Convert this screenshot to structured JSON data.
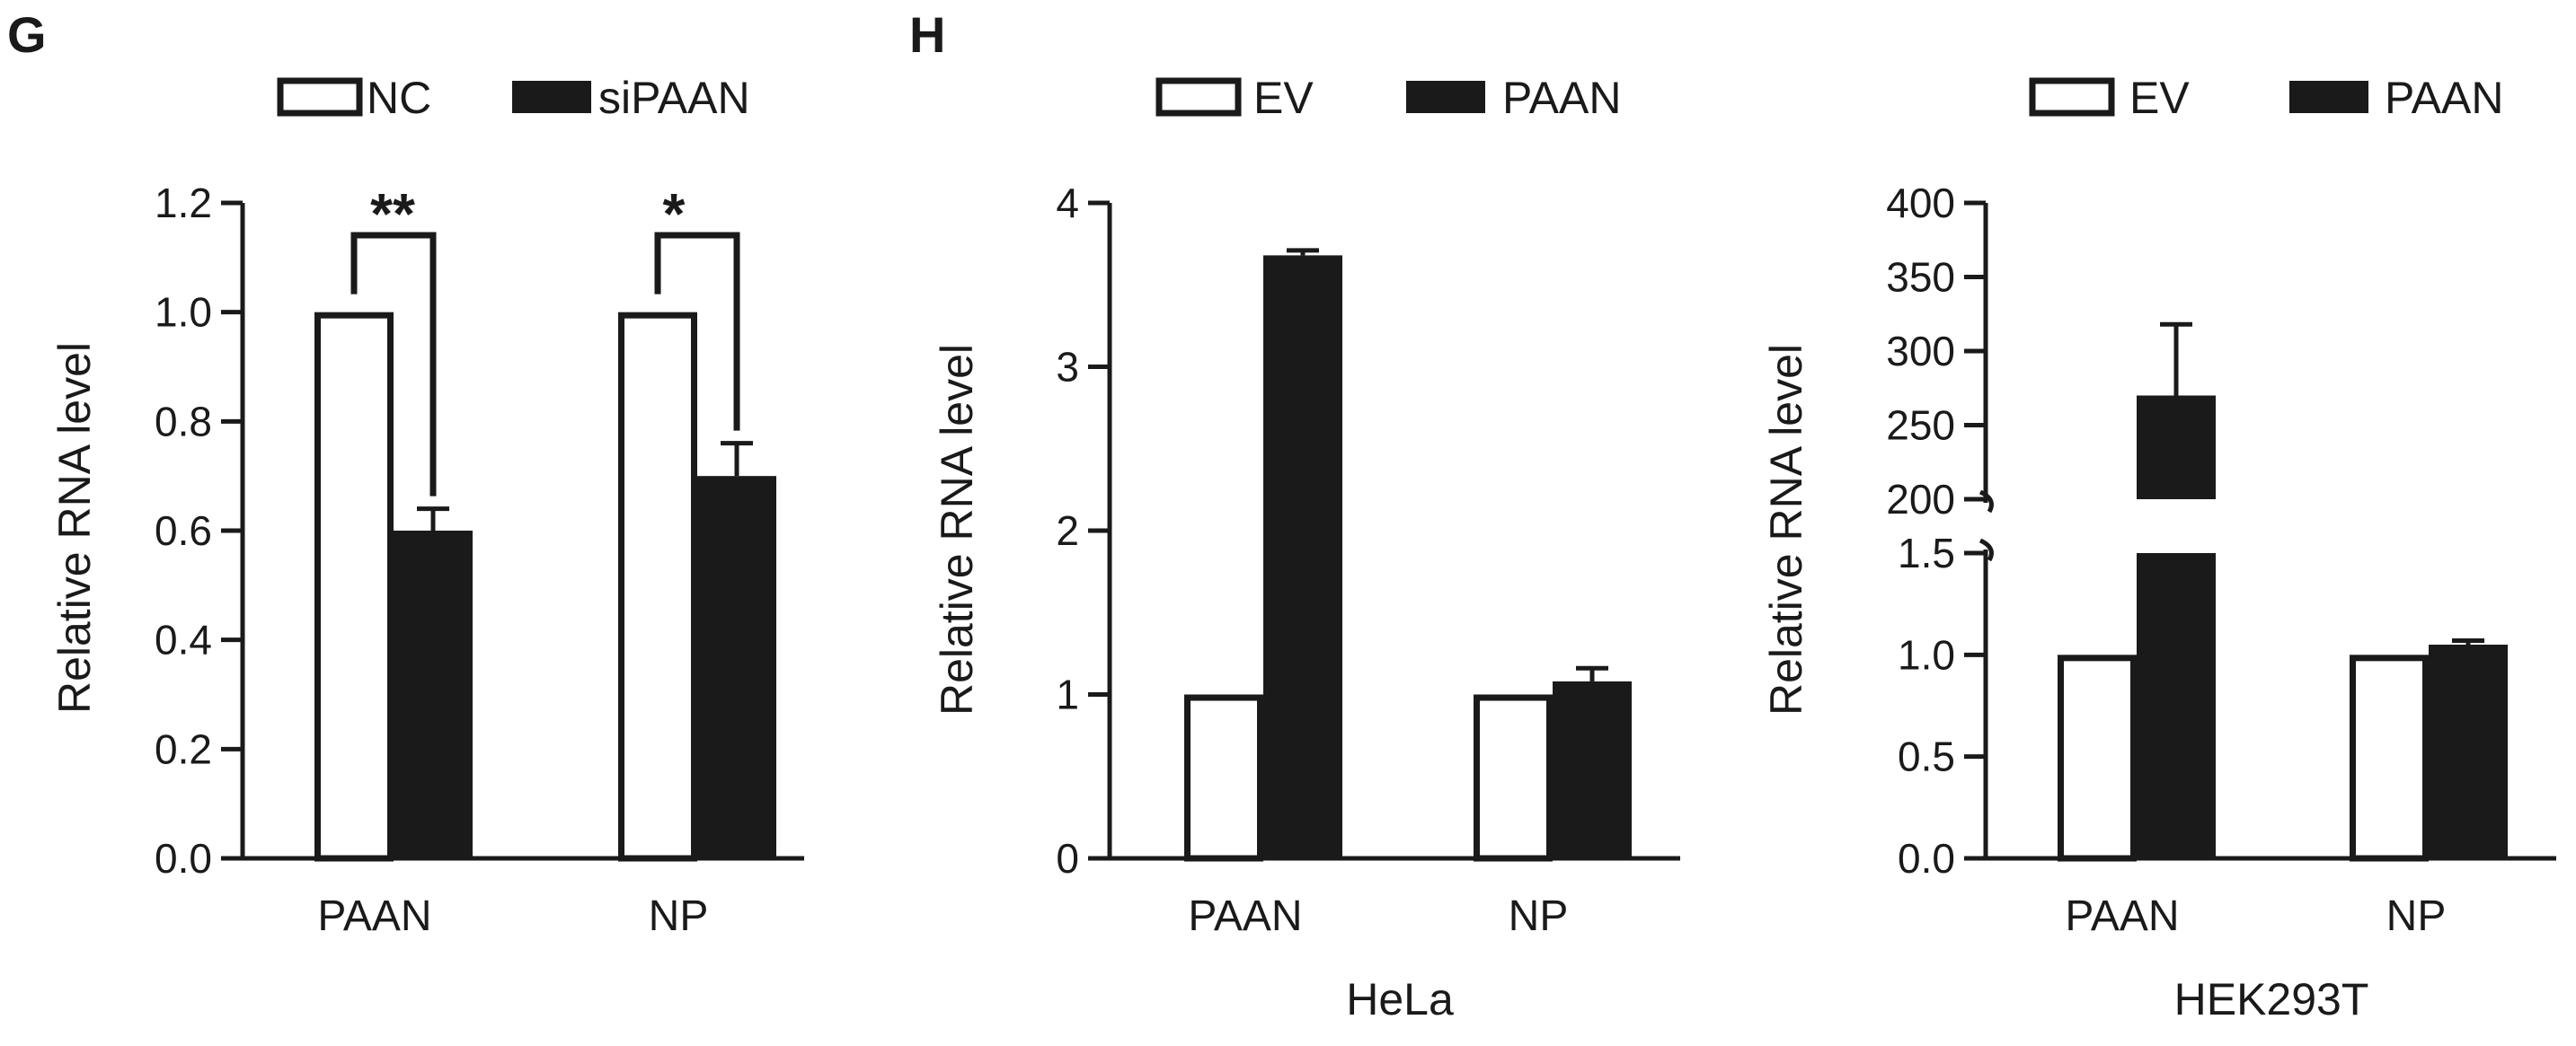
{
  "figure": {
    "panels": [
      "G",
      "H"
    ]
  },
  "chart_data": [
    {
      "panel": "G",
      "type": "bar",
      "categories": [
        "PAAN",
        "NP"
      ],
      "series": [
        {
          "name": "NC",
          "values": [
            1.0,
            1.0
          ],
          "errors": [
            0,
            0
          ],
          "fill": "#ffffff"
        },
        {
          "name": "siPAAN",
          "values": [
            0.6,
            0.7
          ],
          "errors": [
            0.04,
            0.06
          ],
          "fill": "#1a1a1a"
        }
      ],
      "ylabel": "Relative  RNA level",
      "xlabel": "",
      "ylim": [
        0,
        1.2
      ],
      "yticks": [
        "0.0",
        "0.2",
        "0.4",
        "0.6",
        "0.8",
        "1.0",
        "1.2"
      ],
      "significance": [
        "**",
        "*"
      ],
      "legend": "top"
    },
    {
      "panel": "H",
      "type": "bar",
      "categories": [
        "PAAN",
        "NP"
      ],
      "series": [
        {
          "name": "EV",
          "values": [
            1.0,
            1.0
          ],
          "errors": [
            0,
            0
          ],
          "fill": "#ffffff"
        },
        {
          "name": "PAAN",
          "values": [
            3.68,
            1.08
          ],
          "errors": [
            0.03,
            0.08
          ],
          "fill": "#1a1a1a"
        }
      ],
      "ylabel": "Relative  RNA level",
      "xlabel": "HeLa",
      "ylim": [
        0,
        4
      ],
      "yticks": [
        "0",
        "1",
        "2",
        "3",
        "4"
      ],
      "legend": "top"
    },
    {
      "type": "bar",
      "categories": [
        "PAAN",
        "NP"
      ],
      "series": [
        {
          "name": "EV",
          "values": [
            1.0,
            1.0
          ],
          "errors": [
            0,
            0
          ],
          "fill": "#ffffff"
        },
        {
          "name": "PAAN",
          "values": [
            270,
            1.05
          ],
          "errors": [
            48,
            0.02
          ],
          "fill": "#1a1a1a"
        }
      ],
      "ylabel": "Relative RNA level",
      "xlabel": "HEK293T",
      "ylim": [
        0,
        400
      ],
      "axis_break": {
        "lower": [
          0,
          1.5
        ],
        "upper": [
          200,
          400
        ]
      },
      "yticks_lower": [
        "0.0",
        "0.5",
        "1.0",
        "1.5"
      ],
      "yticks_upper": [
        "200",
        "250",
        "300",
        "350",
        "400"
      ],
      "legend": "top"
    }
  ]
}
